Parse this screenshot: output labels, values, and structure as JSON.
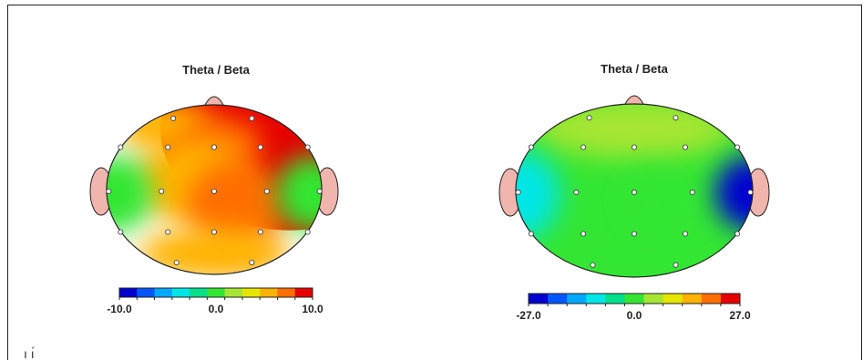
{
  "chart_data": [
    {
      "type": "heatmap",
      "subtype": "eeg-topographic-map",
      "title": "Theta / Beta",
      "colorbar": {
        "min": -10.0,
        "max": 10.0,
        "tick_labels": [
          "-10.0",
          "0.0",
          "10.0"
        ]
      },
      "regions": [
        {
          "region": "frontal-right",
          "value": 10
        },
        {
          "region": "frontal-left",
          "value": 6
        },
        {
          "region": "frontal-center",
          "value": 7
        },
        {
          "region": "central-upper",
          "value": 5
        },
        {
          "region": "central-parietal",
          "value": 7
        },
        {
          "region": "left-temporal",
          "value": 0
        },
        {
          "region": "right-temporal",
          "value": -1
        },
        {
          "region": "occipital",
          "value": 5
        }
      ]
    },
    {
      "type": "heatmap",
      "subtype": "eeg-topographic-map",
      "title": "Theta / Beta",
      "colorbar": {
        "min": -27.0,
        "max": 27.0,
        "tick_labels": [
          "-27.0",
          "0.0",
          "27.0"
        ]
      },
      "regions": [
        {
          "region": "whole-scalp",
          "value": 0
        },
        {
          "region": "frontal-upper",
          "value": 3
        },
        {
          "region": "left-temporal",
          "value": -12
        },
        {
          "region": "right-temporal",
          "value": -27
        },
        {
          "region": "central",
          "value": 2
        }
      ]
    }
  ],
  "colormap": [
    "#0000d0",
    "#0055ff",
    "#00a8ff",
    "#00e6e6",
    "#00e08a",
    "#33e633",
    "#a6e633",
    "#e6e600",
    "#ffb300",
    "#ff6e00",
    "#e60000"
  ],
  "stray_text": "ı ı́"
}
